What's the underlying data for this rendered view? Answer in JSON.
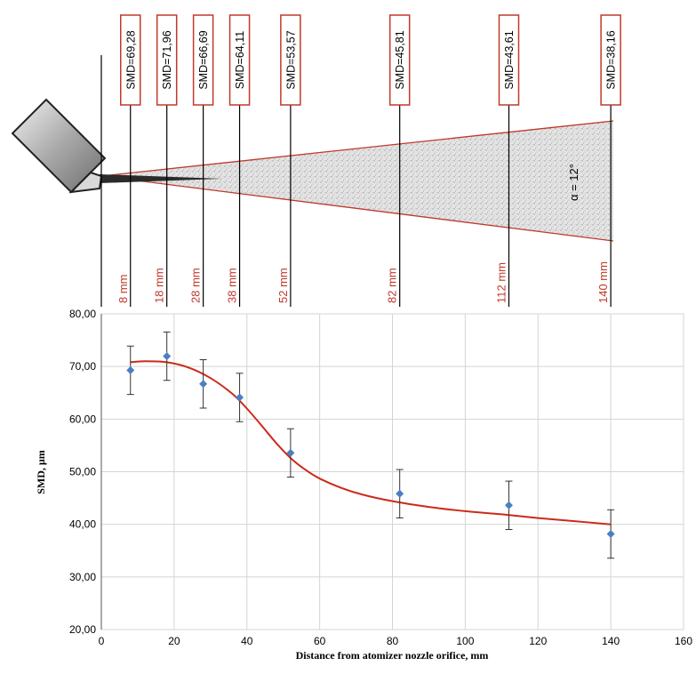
{
  "chart_data": {
    "type": "scatter",
    "xlabel": "Distance from atomizer nozzle orifice, mm",
    "ylabel": "SMD, µm",
    "xlim": [
      0,
      160
    ],
    "ylim": [
      20,
      80
    ],
    "x_ticks": [
      "0",
      "20",
      "40",
      "60",
      "80",
      "100",
      "120",
      "140",
      "160"
    ],
    "y_ticks": [
      "20,00",
      "30,00",
      "40,00",
      "50,00",
      "60,00",
      "70,00",
      "80,00"
    ],
    "grid": true,
    "series": [
      {
        "points": [
          {
            "x": 8,
            "y": 69.28,
            "err": 4.6
          },
          {
            "x": 18,
            "y": 71.96,
            "err": 4.6
          },
          {
            "x": 28,
            "y": 66.69,
            "err": 4.6
          },
          {
            "x": 38,
            "y": 64.11,
            "err": 4.6
          },
          {
            "x": 52,
            "y": 53.57,
            "err": 4.6
          },
          {
            "x": 82,
            "y": 45.81,
            "err": 4.6
          },
          {
            "x": 112,
            "y": 43.61,
            "err": 4.6
          },
          {
            "x": 140,
            "y": 38.16,
            "err": 4.6
          }
        ],
        "color": "#4a7fc1"
      }
    ],
    "fit_curve": {
      "color": "#cc2a1a",
      "points": [
        [
          8,
          70.8
        ],
        [
          12,
          71.0
        ],
        [
          18,
          70.8
        ],
        [
          24,
          69.8
        ],
        [
          30,
          67.8
        ],
        [
          36,
          64.8
        ],
        [
          40,
          62.0
        ],
        [
          44,
          58.8
        ],
        [
          48,
          55.5
        ],
        [
          52,
          52.6
        ],
        [
          56,
          50.4
        ],
        [
          60,
          48.7
        ],
        [
          66,
          46.9
        ],
        [
          72,
          45.6
        ],
        [
          80,
          44.4
        ],
        [
          90,
          43.3
        ],
        [
          100,
          42.5
        ],
        [
          110,
          41.9
        ],
        [
          120,
          41.2
        ],
        [
          130,
          40.6
        ],
        [
          140,
          40.0
        ]
      ]
    }
  },
  "diagram": {
    "smd_labels": [
      "SMD=69,28",
      "SMD=71,96",
      "SMD=66,69",
      "SMD=64,11",
      "SMD=53,57",
      "SMD=45,81",
      "SMD=43,61",
      "SMD=38,16"
    ],
    "distance_labels": [
      "8 mm",
      "18 mm",
      "28 mm",
      "38 mm",
      "52 mm",
      "82 mm",
      "112 mm",
      "140 mm"
    ],
    "distances": [
      8,
      18,
      28,
      38,
      52,
      82,
      112,
      140
    ],
    "angle_label": "α = 12°",
    "box_border_color": "#c0392b",
    "spray_edge_color": "#c0392b"
  }
}
